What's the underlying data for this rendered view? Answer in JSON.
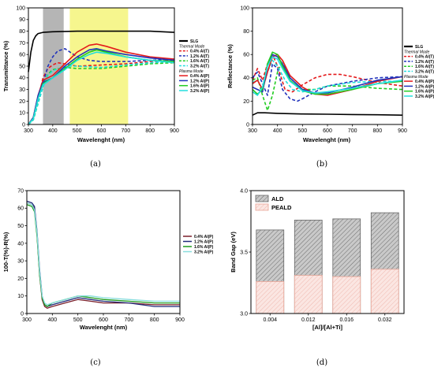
{
  "chart_data": [
    {
      "panel": "(a)",
      "type": "line",
      "xlabel": "Wavelenght (nm)",
      "ylabel": "Transmittance (%)",
      "xlim": [
        300,
        900
      ],
      "ylim": [
        0,
        100
      ],
      "xticks": [
        "300",
        "400",
        "500",
        "600",
        "700",
        "800",
        "900"
      ],
      "yticks": [
        "0",
        "10",
        "20",
        "30",
        "40",
        "50",
        "60",
        "70",
        "80",
        "90",
        "100"
      ],
      "shaded": [
        {
          "range": [
            360,
            445
          ],
          "color": "#a8a8a8"
        },
        {
          "range": [
            470,
            710
          ],
          "color": "#f5f57a"
        }
      ],
      "legend": {
        "slg": "SLG",
        "thermal": "Thermal Mode",
        "plasma": "Plasma Mode"
      },
      "series": [
        {
          "name": "SLG",
          "color": "#000000",
          "dash": "solid",
          "group": "slg",
          "x": [
            300,
            310,
            320,
            330,
            340,
            360,
            400,
            500,
            600,
            700,
            800,
            900
          ],
          "y": [
            45,
            62,
            72,
            76,
            78,
            79,
            79.5,
            80,
            80,
            80,
            80,
            79
          ]
        },
        {
          "name": "0.4% Al(T)",
          "color": "#e41a1c",
          "dash": "dash",
          "group": "thermal",
          "x": [
            300,
            320,
            340,
            360,
            380,
            400,
            420,
            450,
            500,
            600,
            700,
            800,
            900
          ],
          "y": [
            0,
            5,
            22,
            40,
            48,
            51,
            53,
            52,
            50,
            51,
            52,
            54,
            55
          ]
        },
        {
          "name": "1.2% Al(T)",
          "color": "#2233bb",
          "dash": "dash",
          "group": "thermal",
          "x": [
            300,
            320,
            340,
            360,
            380,
            400,
            420,
            450,
            500,
            550,
            600,
            700,
            800,
            900
          ],
          "y": [
            0,
            4,
            20,
            35,
            50,
            58,
            63,
            65,
            58,
            55,
            54,
            54,
            55,
            56
          ]
        },
        {
          "name": "1.6% Al(T)",
          "color": "#22cc22",
          "dash": "dash",
          "group": "thermal",
          "x": [
            300,
            320,
            340,
            360,
            380,
            400,
            450,
            500,
            600,
            700,
            800,
            900
          ],
          "y": [
            0,
            4,
            18,
            33,
            43,
            47,
            49,
            48,
            48,
            50,
            52,
            53
          ]
        },
        {
          "name": "3.2% Al(T)",
          "color": "#22dddd",
          "dash": "dash",
          "group": "thermal",
          "x": [
            300,
            320,
            340,
            360,
            380,
            400,
            450,
            500,
            600,
            700,
            800,
            900
          ],
          "y": [
            0,
            4,
            18,
            32,
            42,
            46,
            50,
            50,
            49,
            51,
            53,
            54
          ]
        },
        {
          "name": "0.4% Al(P)",
          "color": "#e41a1c",
          "dash": "solid",
          "group": "plasma",
          "x": [
            300,
            320,
            340,
            360,
            400,
            450,
            500,
            550,
            580,
            620,
            700,
            800,
            900
          ],
          "y": [
            0,
            6,
            25,
            38,
            42,
            52,
            62,
            68,
            69,
            67,
            62,
            58,
            56
          ]
        },
        {
          "name": "1.2% Al(P)",
          "color": "#2233bb",
          "dash": "solid",
          "group": "plasma",
          "x": [
            300,
            320,
            340,
            360,
            400,
            450,
            500,
            550,
            580,
            620,
            700,
            800,
            900
          ],
          "y": [
            0,
            6,
            25,
            36,
            40,
            50,
            58,
            64,
            65,
            63,
            60,
            57,
            55
          ]
        },
        {
          "name": "1.6% Al(P)",
          "color": "#22cc22",
          "dash": "solid",
          "group": "plasma",
          "x": [
            300,
            320,
            340,
            360,
            400,
            450,
            500,
            550,
            580,
            620,
            700,
            800,
            900
          ],
          "y": [
            0,
            5,
            22,
            35,
            40,
            48,
            56,
            62,
            64,
            62,
            58,
            55,
            54
          ]
        },
        {
          "name": "3.2% Al(P)",
          "color": "#22dddd",
          "dash": "solid",
          "group": "plasma",
          "x": [
            300,
            320,
            340,
            360,
            400,
            450,
            500,
            550,
            580,
            620,
            700,
            800,
            900
          ],
          "y": [
            0,
            5,
            22,
            34,
            40,
            47,
            55,
            60,
            62,
            61,
            58,
            55,
            53
          ]
        }
      ]
    },
    {
      "panel": "(b)",
      "type": "line",
      "xlabel": "Wavelenght (nm)",
      "ylabel": "Reflectance (%)",
      "xlim": [
        300,
        900
      ],
      "ylim": [
        0,
        100
      ],
      "xticks": [
        "300",
        "400",
        "500",
        "600",
        "700",
        "800",
        "900"
      ],
      "yticks": [
        "0",
        "20",
        "40",
        "60",
        "80",
        "100"
      ],
      "legend": {
        "slg": "SLG",
        "thermal": "Thermal Mode",
        "plasma": "Plasma Mode"
      },
      "series": [
        {
          "name": "SLG",
          "color": "#000000",
          "dash": "solid",
          "group": "slg",
          "x": [
            300,
            320,
            350,
            400,
            500,
            600,
            700,
            800,
            900
          ],
          "y": [
            8,
            10,
            10,
            9.5,
            9,
            8.8,
            8.5,
            8.3,
            8
          ]
        },
        {
          "name": "0.4% Al(T)",
          "color": "#e41a1c",
          "dash": "dash",
          "group": "thermal",
          "x": [
            300,
            320,
            340,
            360,
            380,
            400,
            430,
            460,
            500,
            550,
            600,
            650,
            700,
            800,
            900
          ],
          "y": [
            38,
            48,
            38,
            52,
            60,
            50,
            30,
            28,
            34,
            40,
            43,
            43,
            41,
            36,
            33
          ]
        },
        {
          "name": "1.2% Al(T)",
          "color": "#2233bb",
          "dash": "dash",
          "group": "thermal",
          "x": [
            300,
            320,
            340,
            360,
            380,
            400,
            420,
            450,
            480,
            500,
            550,
            600,
            700,
            800,
            900
          ],
          "y": [
            40,
            45,
            35,
            25,
            52,
            48,
            30,
            22,
            20,
            22,
            28,
            33,
            37,
            40,
            41
          ]
        },
        {
          "name": "1.6% Al(T)",
          "color": "#22cc22",
          "dash": "dash",
          "group": "thermal",
          "x": [
            300,
            320,
            340,
            360,
            380,
            400,
            420,
            450,
            500,
            550,
            600,
            700,
            800,
            900
          ],
          "y": [
            38,
            40,
            25,
            12,
            25,
            45,
            55,
            40,
            30,
            30,
            33,
            33,
            31,
            30
          ]
        },
        {
          "name": "3.2% Al(T)",
          "color": "#22dddd",
          "dash": "dash",
          "group": "thermal",
          "x": [
            300,
            320,
            340,
            360,
            380,
            400,
            430,
            460,
            500,
            550,
            600,
            700,
            800,
            900
          ],
          "y": [
            36,
            38,
            30,
            45,
            55,
            50,
            38,
            30,
            28,
            30,
            33,
            36,
            37,
            37
          ]
        },
        {
          "name": "0.4% Al(P)",
          "color": "#e41a1c",
          "dash": "solid",
          "group": "plasma",
          "x": [
            300,
            320,
            340,
            360,
            380,
            400,
            420,
            450,
            500,
            550,
            600,
            700,
            800,
            900
          ],
          "y": [
            35,
            38,
            30,
            45,
            58,
            60,
            55,
            42,
            32,
            26,
            25,
            30,
            37,
            41
          ]
        },
        {
          "name": "1.2% Al(P)",
          "color": "#2233bb",
          "dash": "solid",
          "group": "plasma",
          "x": [
            300,
            320,
            340,
            360,
            380,
            400,
            420,
            450,
            500,
            550,
            600,
            700,
            800,
            900
          ],
          "y": [
            32,
            30,
            28,
            50,
            60,
            58,
            52,
            40,
            30,
            27,
            27,
            32,
            38,
            41
          ]
        },
        {
          "name": "1.6% Al(P)",
          "color": "#22cc22",
          "dash": "solid",
          "group": "plasma",
          "x": [
            300,
            320,
            340,
            360,
            380,
            400,
            420,
            450,
            500,
            550,
            600,
            700,
            800,
            900
          ],
          "y": [
            30,
            26,
            30,
            52,
            62,
            60,
            50,
            38,
            29,
            26,
            26,
            30,
            35,
            37
          ]
        },
        {
          "name": "3.2% Al(P)",
          "color": "#22dddd",
          "dash": "solid",
          "group": "plasma",
          "x": [
            300,
            320,
            340,
            360,
            380,
            400,
            420,
            450,
            500,
            550,
            600,
            700,
            800,
            900
          ],
          "y": [
            28,
            25,
            32,
            50,
            58,
            56,
            48,
            37,
            29,
            27,
            28,
            31,
            35,
            38
          ]
        }
      ]
    },
    {
      "panel": "(c)",
      "type": "line",
      "xlabel": "Wavelenght (nm)",
      "ylabel": "100-T(%)-R(%)",
      "xlim": [
        300,
        900
      ],
      "ylim": [
        0,
        70
      ],
      "xticks": [
        "300",
        "400",
        "500",
        "600",
        "700",
        "800",
        "900"
      ],
      "yticks": [
        "0",
        "10",
        "20",
        "30",
        "40",
        "50",
        "60",
        "70"
      ],
      "series": [
        {
          "name": "0.4% Al(P)",
          "color": "#7a1f2a",
          "x": [
            300,
            320,
            330,
            340,
            350,
            360,
            370,
            380,
            400,
            450,
            500,
            550,
            600,
            700,
            800,
            900
          ],
          "y": [
            63,
            62,
            60,
            45,
            22,
            8,
            4,
            3,
            4,
            6,
            8,
            7,
            6,
            6,
            5,
            5
          ]
        },
        {
          "name": "1.2% Al(P)",
          "color": "#1f2a7a",
          "x": [
            300,
            320,
            330,
            340,
            350,
            360,
            370,
            380,
            400,
            450,
            500,
            550,
            600,
            700,
            800,
            900
          ],
          "y": [
            64,
            63,
            61,
            47,
            25,
            10,
            5,
            4,
            5,
            7,
            9,
            8,
            7,
            6,
            4,
            4
          ]
        },
        {
          "name": "1.6% Al(P)",
          "color": "#1a9a1a",
          "x": [
            300,
            320,
            330,
            340,
            350,
            360,
            370,
            380,
            400,
            450,
            500,
            550,
            600,
            700,
            800,
            900
          ],
          "y": [
            62,
            61,
            58,
            44,
            22,
            9,
            5,
            4,
            6,
            8,
            10,
            9,
            8,
            7,
            6,
            6
          ]
        },
        {
          "name": "3.2% Al(P)",
          "color": "#88dddd",
          "x": [
            300,
            320,
            330,
            340,
            350,
            360,
            370,
            380,
            400,
            450,
            500,
            550,
            600,
            700,
            800,
            900
          ],
          "y": [
            63,
            62,
            59,
            46,
            24,
            10,
            6,
            5,
            6,
            8,
            10,
            10,
            9,
            8,
            7,
            7
          ]
        }
      ]
    },
    {
      "panel": "(d)",
      "type": "bar",
      "xlabel": "[Al]/[Al+Ti]",
      "ylabel": "Band Gap (eV)",
      "ylim": [
        3.0,
        4.0
      ],
      "yticks": [
        "3.0",
        "3.5",
        "4.0"
      ],
      "categories": [
        "0.004",
        "0.012",
        "0.016",
        "0.032"
      ],
      "series": [
        {
          "name": "ALD",
          "color": "#999999",
          "values": [
            3.68,
            3.76,
            3.77,
            3.82
          ]
        },
        {
          "name": "PEALD",
          "color": "#f4c8c0",
          "values": [
            3.26,
            3.31,
            3.3,
            3.36
          ]
        }
      ]
    }
  ]
}
